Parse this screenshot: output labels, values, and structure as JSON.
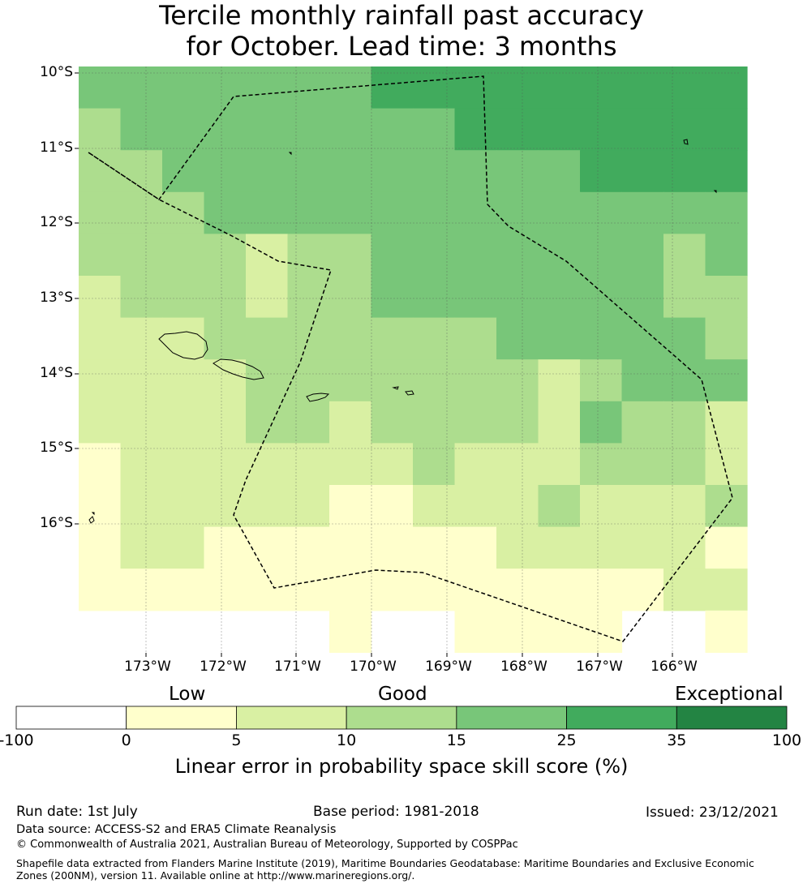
{
  "title_line1": "Tercile monthly rainfall past accuracy",
  "title_line2": "for October. Lead time: 3 months",
  "lat_labels": [
    "10°S",
    "11°S",
    "12°S",
    "13°S",
    "14°S",
    "15°S",
    "16°S"
  ],
  "lon_labels": [
    "173°W",
    "172°W",
    "171°W",
    "170°W",
    "169°W",
    "168°W",
    "167°W",
    "166°W"
  ],
  "colorbar": {
    "words": [
      "Low",
      "Good",
      "Exceptional"
    ],
    "ticks": [
      "-100",
      "0",
      "5",
      "10",
      "15",
      "25",
      "35",
      "100"
    ],
    "colors": [
      "#ffffff",
      "#ffffcc",
      "#d9f0a3",
      "#addd8e",
      "#78c679",
      "#41ab5d",
      "#238443"
    ],
    "label": "Linear error in probability space skill score (%)"
  },
  "classes": [
    "#ffffff",
    "#ffffcc",
    "#d9f0a3",
    "#addd8e",
    "#78c679",
    "#41ab5d",
    "#238443"
  ],
  "skill_grid": [
    [
      4,
      4,
      4,
      4,
      4,
      4,
      4,
      5,
      5,
      5,
      5,
      5,
      5,
      5,
      5,
      5
    ],
    [
      3,
      4,
      4,
      4,
      4,
      4,
      4,
      4,
      4,
      5,
      5,
      5,
      5,
      5,
      5,
      5
    ],
    [
      3,
      3,
      4,
      4,
      4,
      4,
      4,
      4,
      4,
      4,
      4,
      4,
      5,
      5,
      5,
      5
    ],
    [
      3,
      3,
      3,
      4,
      4,
      4,
      4,
      4,
      4,
      4,
      4,
      4,
      4,
      4,
      4,
      4
    ],
    [
      3,
      3,
      3,
      3,
      2,
      3,
      3,
      4,
      4,
      4,
      4,
      4,
      4,
      4,
      3,
      4
    ],
    [
      2,
      3,
      3,
      3,
      2,
      3,
      3,
      4,
      4,
      4,
      4,
      4,
      4,
      4,
      3,
      3
    ],
    [
      2,
      2,
      2,
      3,
      3,
      3,
      3,
      3,
      3,
      3,
      4,
      4,
      4,
      4,
      4,
      3
    ],
    [
      2,
      2,
      2,
      2,
      3,
      3,
      3,
      3,
      3,
      3,
      3,
      2,
      3,
      4,
      4,
      4
    ],
    [
      2,
      2,
      2,
      2,
      3,
      3,
      2,
      3,
      3,
      3,
      3,
      2,
      4,
      3,
      3,
      2
    ],
    [
      1,
      2,
      2,
      2,
      2,
      2,
      2,
      2,
      3,
      2,
      2,
      2,
      3,
      3,
      3,
      2
    ],
    [
      1,
      2,
      2,
      2,
      2,
      2,
      1,
      1,
      2,
      2,
      2,
      3,
      2,
      2,
      2,
      3
    ],
    [
      1,
      2,
      2,
      1,
      1,
      1,
      1,
      1,
      1,
      1,
      2,
      2,
      2,
      2,
      2,
      1
    ],
    [
      1,
      1,
      1,
      1,
      1,
      1,
      1,
      1,
      1,
      1,
      1,
      1,
      1,
      1,
      2,
      2
    ],
    [
      -1,
      -1,
      -1,
      -1,
      -1,
      -1,
      1,
      -1,
      -1,
      1,
      1,
      1,
      1,
      -1,
      -1,
      1
    ]
  ],
  "footer": {
    "run_date": "Run date: 1st July",
    "base_period": "Base period: 1981-2018",
    "issued": "Issued: 23/12/2021",
    "data_source": "Data source: ACCESS-S2 and ERA5 Climate Reanalysis",
    "copyright": "© Commonwealth of Australia 2021, Australian Bureau of Meteorology, Supported by COSPPac",
    "shapefile": "Shapefile data extracted from Flanders Marine Institute (2019), Maritime Boundaries Geodatabase: Maritime Boundaries and Exclusive Economic Zones (200NM), version 11. Available online at http://www.marineregions.org/."
  }
}
